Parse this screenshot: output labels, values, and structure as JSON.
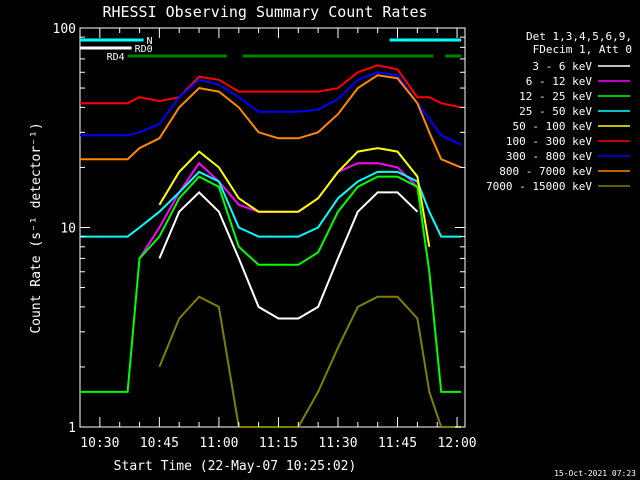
{
  "chart_data": {
    "type": "line",
    "title": "RHESSI Observing Summary Count Rates",
    "xlabel": "Start Time (22-May-07 10:25:02)",
    "ylabel": "Count Rate (s⁻¹ detector⁻¹)",
    "xlim": [
      "10:25",
      "12:02"
    ],
    "ylim": [
      1,
      100
    ],
    "yscale": "log",
    "x_ticks": [
      "10:30",
      "10:45",
      "11:00",
      "11:15",
      "11:30",
      "11:45",
      "12:00"
    ],
    "y_ticks": [
      "1",
      "10",
      "100"
    ],
    "legend_header": [
      "Det 1,3,4,5,6,9,",
      "FDecim 1, Att 0"
    ],
    "legend_position": "right",
    "timestamp": "15-Oct-2021 07:23",
    "x": [
      "10:25",
      "10:37",
      "10:40",
      "10:45",
      "10:50",
      "10:55",
      "11:00",
      "11:05",
      "11:10",
      "11:15",
      "11:20",
      "11:25",
      "11:30",
      "11:35",
      "11:40",
      "11:45",
      "11:50",
      "11:53",
      "11:56",
      "12:01"
    ],
    "series": [
      {
        "name": "3 - 6 keV",
        "color": "#ffffff",
        "values": [
          null,
          null,
          null,
          7,
          12,
          15,
          12,
          7,
          4,
          3.5,
          3.5,
          4,
          7,
          12,
          15,
          15,
          12,
          null,
          null,
          null
        ]
      },
      {
        "name": "6 - 12 keV",
        "color": "#ff00ff",
        "values": [
          null,
          null,
          7,
          10,
          15,
          21,
          17,
          13,
          12,
          12,
          12,
          14,
          19,
          21,
          21,
          20,
          16,
          null,
          null,
          null
        ]
      },
      {
        "name": "12 - 25 keV",
        "color": "#00ff00",
        "values": [
          1.5,
          1.5,
          7,
          9,
          14,
          18,
          16,
          8,
          6.5,
          6.5,
          6.5,
          7.5,
          12,
          16,
          18,
          18,
          16,
          6,
          1.5,
          1.5
        ]
      },
      {
        "name": "25 - 50 keV",
        "color": "#00ffff",
        "values": [
          9,
          9,
          10,
          12,
          15,
          19,
          17,
          10,
          9,
          9,
          9,
          10,
          14,
          17,
          19,
          19,
          17,
          12,
          9,
          9
        ]
      },
      {
        "name": "50 - 100 keV",
        "color": "#ffff00",
        "values": [
          null,
          null,
          null,
          13,
          19,
          24,
          20,
          14,
          12,
          12,
          12,
          14,
          19,
          24,
          25,
          24,
          18,
          8,
          null,
          null
        ]
      },
      {
        "name": "100 - 300 keV",
        "color": "#ff0000",
        "values": [
          42,
          42,
          45,
          43,
          45,
          57,
          55,
          48,
          48,
          48,
          48,
          48,
          50,
          60,
          65,
          62,
          45,
          45,
          42,
          40
        ]
      },
      {
        "name": "300 - 800 keV",
        "color": "#0000ff",
        "values": [
          29,
          29,
          30,
          33,
          45,
          55,
          52,
          45,
          38,
          38,
          38,
          39,
          44,
          55,
          60,
          58,
          42,
          35,
          29,
          26
        ]
      },
      {
        "name": "800 - 7000 keV",
        "color": "#ff8800",
        "values": [
          22,
          22,
          25,
          28,
          40,
          50,
          48,
          40,
          30,
          28,
          28,
          30,
          37,
          50,
          58,
          56,
          42,
          30,
          22,
          20
        ]
      },
      {
        "name": "7000 - 15000 keV",
        "color": "#808000",
        "values": [
          null,
          null,
          null,
          2,
          3.5,
          4.5,
          4,
          1,
          1,
          1,
          1,
          1.5,
          2.5,
          4,
          4.5,
          4.5,
          3.5,
          1.5,
          1,
          1
        ]
      }
    ],
    "state_bars": [
      {
        "label": "N",
        "color": "#00ffff",
        "segments": [
          [
            "10:25",
            "10:41"
          ],
          [
            "11:43",
            "12:01"
          ]
        ]
      },
      {
        "label": "RD0",
        "color": "#ffffff",
        "segments": [
          [
            "10:25",
            "10:38"
          ]
        ]
      },
      {
        "label": "RD4",
        "color": "#008000",
        "segments": [
          [
            "10:37",
            "11:02"
          ],
          [
            "11:06",
            "11:33"
          ],
          [
            "11:33",
            "11:54"
          ],
          [
            "11:57",
            "12:01"
          ]
        ]
      }
    ]
  }
}
